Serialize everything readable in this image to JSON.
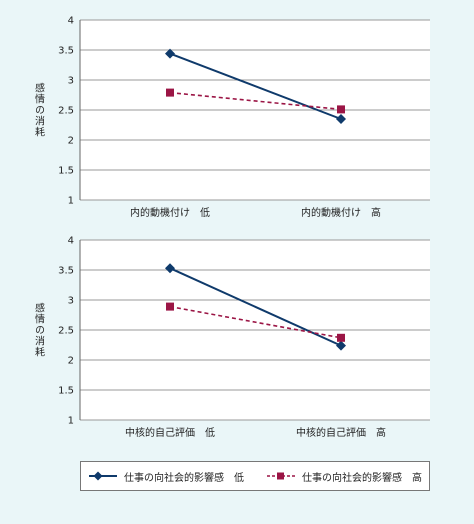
{
  "chart_data": [
    {
      "type": "line",
      "ylabel": "感情の消耗",
      "categories": [
        "内的動機付け　低",
        "内的動機付け　高"
      ],
      "ylim": [
        1,
        4
      ],
      "yticks": [
        "1",
        "1.5",
        "2",
        "2.5",
        "3",
        "3.5",
        "4"
      ],
      "grid": true,
      "series": [
        {
          "name": "仕事の向社会的影響感　低",
          "values": [
            3.44,
            2.35
          ],
          "color": "#0f3a6b",
          "marker": "diamond",
          "line": "solid"
        },
        {
          "name": "仕事の向社会的影響感　高",
          "values": [
            2.79,
            2.51
          ],
          "color": "#9b1545",
          "marker": "square",
          "line": "dashed"
        }
      ]
    },
    {
      "type": "line",
      "ylabel": "感情の消耗",
      "categories": [
        "中核的自己評価　低",
        "中核的自己評価　高"
      ],
      "ylim": [
        1,
        4
      ],
      "yticks": [
        "1",
        "1.5",
        "2",
        "2.5",
        "3",
        "3.5",
        "4"
      ],
      "grid": true,
      "series": [
        {
          "name": "仕事の向社会的影響感　低",
          "values": [
            3.53,
            2.24
          ],
          "color": "#0f3a6b",
          "marker": "diamond",
          "line": "solid"
        },
        {
          "name": "仕事の向社会的影響感　高",
          "values": [
            2.89,
            2.37
          ],
          "color": "#9b1545",
          "marker": "square",
          "line": "dashed"
        }
      ]
    }
  ],
  "legend": {
    "position": "bottom",
    "items": [
      "仕事の向社会的影響感　低",
      "仕事の向社会的影響感　高"
    ]
  }
}
